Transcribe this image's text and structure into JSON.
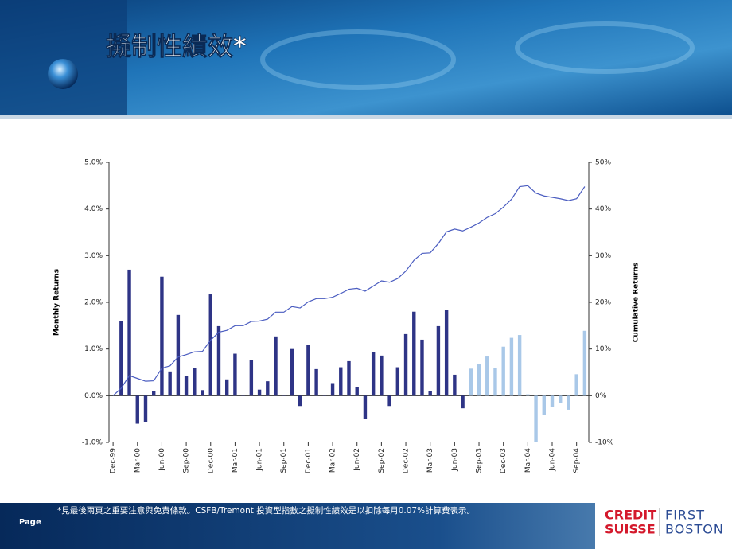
{
  "slide": {
    "title": "擬制性績效*",
    "footnote": "*見最後兩頁之重要注意與免責條款。CSFB/Tremont 投資型指數之擬制性績效是以扣除每月0.07%計算費表示。",
    "page_label": "Page",
    "logo": {
      "line1": "CREDIT",
      "line2": "SUISSE",
      "line3": "FIRST",
      "line4": "BOSTON"
    }
  },
  "chart_data": {
    "type": "bar_line",
    "ylabel": "Monthly Returns",
    "y2label": "Cumulative Returns",
    "categories": [
      "Dec-99",
      null,
      null,
      "Mar-00",
      null,
      null,
      "Jun-00",
      null,
      null,
      "Sep-00",
      null,
      null,
      "Dec-00",
      null,
      null,
      "Mar-01",
      null,
      null,
      "Jun-01",
      null,
      null,
      "Sep-01",
      null,
      null,
      "Dec-01",
      null,
      null,
      "Mar-02",
      null,
      null,
      "Jun-02",
      null,
      null,
      "Sep-02",
      null,
      null,
      "Dec-02",
      null,
      null,
      "Mar-03",
      null,
      null,
      "Jun-03",
      null,
      null,
      "Sep-03",
      null,
      null,
      "Dec-03",
      null,
      null,
      "Mar-04",
      null,
      null,
      "Jun-04",
      null,
      null,
      "Sep-04",
      null
    ],
    "series": [
      {
        "type": "bar",
        "color": "#2e3486",
        "values": [
          null,
          1.6,
          2.7,
          -0.6,
          -0.57,
          0.1,
          2.55,
          0.52,
          1.73,
          0.42,
          0.6,
          0.12,
          2.17,
          1.49,
          0.35,
          0.9,
          0.01,
          0.77,
          0.13,
          0.31,
          1.27,
          0.02,
          1.0,
          -0.22,
          1.09,
          0.57,
          0.01,
          0.27,
          0.61,
          0.74,
          0.18,
          -0.5,
          0.93,
          0.86,
          -0.22,
          0.61,
          1.32,
          1.8,
          1.2,
          0.1,
          1.49,
          1.83,
          0.45,
          -0.27,
          null,
          null,
          null,
          null,
          null,
          null,
          null,
          null,
          null,
          null,
          null,
          null,
          null,
          null,
          null
        ]
      },
      {
        "type": "bar",
        "color": "#a9c8e8",
        "values": [
          null,
          null,
          null,
          null,
          null,
          null,
          null,
          null,
          null,
          null,
          null,
          null,
          null,
          null,
          null,
          null,
          null,
          null,
          null,
          null,
          null,
          null,
          null,
          null,
          null,
          null,
          null,
          null,
          null,
          null,
          null,
          null,
          null,
          null,
          null,
          null,
          null,
          null,
          null,
          null,
          null,
          null,
          null,
          null,
          0.58,
          0.67,
          0.84,
          0.6,
          1.05,
          1.24,
          1.3,
          0.03,
          -1.0,
          -0.42,
          -0.25,
          -0.15,
          -0.3,
          0.46,
          1.39
        ]
      },
      {
        "type": "line",
        "axis": "y2",
        "color": "#4a5cc0",
        "values": [
          0,
          1.6,
          4.3,
          3.7,
          3.1,
          3.2,
          5.9,
          6.4,
          8.3,
          8.8,
          9.4,
          9.5,
          11.9,
          13.6,
          14,
          15,
          15,
          15.9,
          16,
          16.4,
          17.9,
          17.9,
          19.1,
          18.8,
          20.1,
          20.8,
          20.8,
          21.1,
          21.9,
          22.8,
          23,
          22.4,
          23.5,
          24.6,
          24.3,
          25.1,
          26.7,
          29,
          30.5,
          30.6,
          32.6,
          35.1,
          35.7,
          35.3,
          36.1,
          37,
          38.2,
          39,
          40.4,
          42.1,
          44.8,
          45,
          43.4,
          42.8,
          42.5,
          42.2,
          41.8,
          42.2,
          44.8
        ]
      }
    ],
    "ylim": [
      -1,
      5
    ],
    "yticks": [
      {
        "value": -1,
        "label": "-1.0%"
      },
      {
        "value": 0,
        "label": "0.0%"
      },
      {
        "value": 1,
        "label": "1.0%"
      },
      {
        "value": 2,
        "label": "2.0%"
      },
      {
        "value": 3,
        "label": "3.0%"
      },
      {
        "value": 4,
        "label": "4.0%"
      },
      {
        "value": 5,
        "label": "5.0%"
      }
    ],
    "y2lim": [
      -10,
      50
    ],
    "y2ticks": [
      {
        "value": -10,
        "label": "-10%"
      },
      {
        "value": 0,
        "label": "0%"
      },
      {
        "value": 10,
        "label": "10%"
      },
      {
        "value": 20,
        "label": "20%"
      },
      {
        "value": 30,
        "label": "30%"
      },
      {
        "value": 40,
        "label": "40%"
      },
      {
        "value": 50,
        "label": "50%"
      }
    ]
  }
}
